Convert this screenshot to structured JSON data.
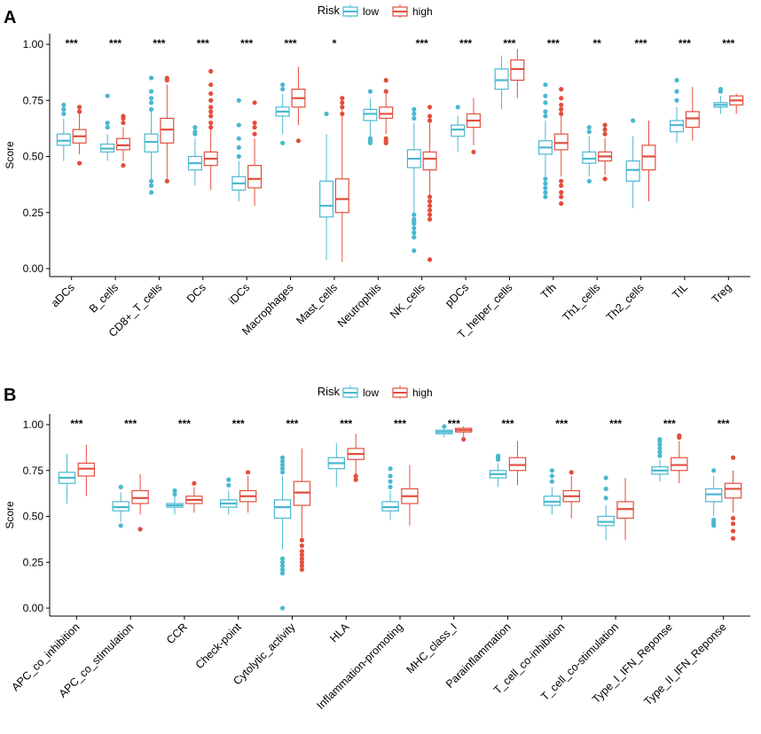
{
  "colors": {
    "low": "#4ab8d0",
    "high": "#e24e3c"
  },
  "chart_data": [
    {
      "panel": "A",
      "type": "boxplot",
      "ylabel": "Score",
      "ylim": [
        0,
        1
      ],
      "yticks": [
        "0.00",
        "0.25",
        "0.50",
        "0.75",
        "1.00"
      ],
      "ytick_values": [
        0,
        0.25,
        0.5,
        0.75,
        1.0
      ],
      "legend": {
        "title": "Risk",
        "entries": [
          "low",
          "high"
        ]
      },
      "categories": [
        "aDCs",
        "B_cells",
        "CD8+_T_cells",
        "DCs",
        "iDCs",
        "Macrophages",
        "Mast_cells",
        "Neutrophils",
        "NK_cells",
        "pDCs",
        "T_helper_cells",
        "Tfh",
        "Th1_cells",
        "Th2_cells",
        "TIL",
        "Treg"
      ],
      "significance": [
        "***",
        "***",
        "***",
        "***",
        "***",
        "***",
        "*",
        "",
        "***",
        "***",
        "***",
        "***",
        "**",
        "***",
        "***",
        "***"
      ],
      "series": [
        {
          "name": "low",
          "boxes": [
            [
              0.48,
              0.55,
              0.57,
              0.6,
              0.67
            ],
            [
              0.48,
              0.52,
              0.535,
              0.555,
              0.6
            ],
            [
              0.36,
              0.52,
              0.565,
              0.6,
              0.7
            ],
            [
              0.37,
              0.44,
              0.47,
              0.5,
              0.58
            ],
            [
              0.3,
              0.35,
              0.38,
              0.41,
              0.48
            ],
            [
              0.6,
              0.68,
              0.7,
              0.72,
              0.78
            ],
            [
              0.04,
              0.23,
              0.28,
              0.39,
              0.6
            ],
            [
              0.59,
              0.66,
              0.69,
              0.71,
              0.76
            ],
            [
              0.25,
              0.45,
              0.49,
              0.53,
              0.65
            ],
            [
              0.52,
              0.59,
              0.62,
              0.64,
              0.68
            ],
            [
              0.71,
              0.8,
              0.84,
              0.89,
              0.95
            ],
            [
              0.41,
              0.51,
              0.54,
              0.57,
              0.66
            ],
            [
              0.41,
              0.47,
              0.49,
              0.52,
              0.59
            ],
            [
              0.27,
              0.39,
              0.44,
              0.48,
              0.59
            ],
            [
              0.56,
              0.61,
              0.64,
              0.66,
              0.72
            ],
            [
              0.69,
              0.72,
              0.73,
              0.74,
              0.77
            ]
          ],
          "outliers": [
            [
              0.69,
              0.71,
              0.73
            ],
            [
              0.63,
              0.65,
              0.77
            ],
            [
              0.34,
              0.37,
              0.39,
              0.71,
              0.74,
              0.76,
              0.79,
              0.85
            ],
            [
              0.6,
              0.61,
              0.63
            ],
            [
              0.5,
              0.54,
              0.58,
              0.64,
              0.75
            ],
            [
              0.56,
              0.8,
              0.82
            ],
            [
              0.69
            ],
            [
              0.56,
              0.57,
              0.58,
              0.79
            ],
            [
              0.08,
              0.14,
              0.16,
              0.18,
              0.2,
              0.21,
              0.22,
              0.24,
              0.67,
              0.69,
              0.71
            ],
            [
              0.72
            ],
            [],
            [
              0.32,
              0.34,
              0.36,
              0.38,
              0.4,
              0.68,
              0.7,
              0.74,
              0.77,
              0.82
            ],
            [
              0.39,
              0.61,
              0.63
            ],
            [
              0.66
            ],
            [
              0.75,
              0.79,
              0.84
            ],
            [
              0.79,
              0.8
            ]
          ]
        },
        {
          "name": "high",
          "boxes": [
            [
              0.51,
              0.56,
              0.59,
              0.62,
              0.7
            ],
            [
              0.48,
              0.53,
              0.55,
              0.58,
              0.63
            ],
            [
              0.4,
              0.56,
              0.62,
              0.67,
              0.82
            ],
            [
              0.35,
              0.46,
              0.49,
              0.52,
              0.62
            ],
            [
              0.28,
              0.36,
              0.4,
              0.46,
              0.58
            ],
            [
              0.64,
              0.72,
              0.76,
              0.8,
              0.9
            ],
            [
              0.03,
              0.25,
              0.31,
              0.4,
              0.76
            ],
            [
              0.6,
              0.67,
              0.69,
              0.72,
              0.78
            ],
            [
              0.33,
              0.44,
              0.49,
              0.52,
              0.65
            ],
            [
              0.55,
              0.63,
              0.66,
              0.69,
              0.76
            ],
            [
              0.76,
              0.84,
              0.89,
              0.93,
              0.98
            ],
            [
              0.41,
              0.53,
              0.56,
              0.6,
              0.68
            ],
            [
              0.42,
              0.48,
              0.5,
              0.52,
              0.58
            ],
            [
              0.3,
              0.44,
              0.5,
              0.55,
              0.66
            ],
            [
              0.57,
              0.63,
              0.67,
              0.7,
              0.81
            ],
            [
              0.69,
              0.73,
              0.75,
              0.77,
              0.78
            ]
          ],
          "outliers": [
            [
              0.47,
              0.7,
              0.72
            ],
            [
              0.46,
              0.65,
              0.67,
              0.68
            ],
            [
              0.39,
              0.84,
              0.85
            ],
            [
              0.63,
              0.65,
              0.68,
              0.7,
              0.72,
              0.75,
              0.78,
              0.82,
              0.88
            ],
            [
              0.6,
              0.63,
              0.65,
              0.74
            ],
            [
              0.57
            ],
            [
              0.69,
              0.72,
              0.74,
              0.76
            ],
            [
              0.56,
              0.57,
              0.58,
              0.79,
              0.84
            ],
            [
              0.04,
              0.22,
              0.24,
              0.26,
              0.28,
              0.3,
              0.32,
              0.66,
              0.68,
              0.72
            ],
            [
              0.52
            ],
            [],
            [
              0.29,
              0.32,
              0.34,
              0.37,
              0.39,
              0.69,
              0.71,
              0.73,
              0.76,
              0.8
            ],
            [
              0.4,
              0.6,
              0.62,
              0.64
            ],
            [],
            [],
            []
          ]
        }
      ]
    },
    {
      "panel": "B",
      "type": "boxplot",
      "ylabel": "Score",
      "ylim": [
        0,
        1
      ],
      "yticks": [
        "0.00",
        "0.25",
        "0.50",
        "0.75",
        "1.00"
      ],
      "ytick_values": [
        0,
        0.25,
        0.5,
        0.75,
        1.0
      ],
      "legend": {
        "title": "Risk",
        "entries": [
          "low",
          "high"
        ]
      },
      "categories": [
        "APC_co_inhibition",
        "APC_co_stimulation",
        "CCR",
        "Check-point",
        "Cytolytic_activity",
        "HLA",
        "Inflammation-promoting",
        "MHC_class_I",
        "Parainflammation",
        "T_cell_co-inhibition",
        "T_cell_co-stimulation",
        "Type_I_IFN_Reponse",
        "Type_II_IFN_Reponse"
      ],
      "significance": [
        "***",
        "***",
        "***",
        "***",
        "***",
        "***",
        "***",
        "***",
        "***",
        "***",
        "***",
        "***",
        "***"
      ],
      "series": [
        {
          "name": "low",
          "boxes": [
            [
              0.57,
              0.68,
              0.71,
              0.74,
              0.84
            ],
            [
              0.47,
              0.53,
              0.55,
              0.58,
              0.63
            ],
            [
              0.51,
              0.55,
              0.56,
              0.57,
              0.61
            ],
            [
              0.51,
              0.55,
              0.57,
              0.59,
              0.64
            ],
            [
              0.32,
              0.49,
              0.55,
              0.59,
              0.72
            ],
            [
              0.66,
              0.76,
              0.79,
              0.82,
              0.9
            ],
            [
              0.48,
              0.53,
              0.55,
              0.58,
              0.64
            ],
            [
              0.93,
              0.95,
              0.96,
              0.97,
              0.98
            ],
            [
              0.66,
              0.71,
              0.73,
              0.75,
              0.79
            ],
            [
              0.51,
              0.56,
              0.58,
              0.61,
              0.66
            ],
            [
              0.37,
              0.45,
              0.47,
              0.5,
              0.56
            ],
            [
              0.69,
              0.73,
              0.75,
              0.77,
              0.81
            ],
            [
              0.5,
              0.58,
              0.62,
              0.65,
              0.72
            ]
          ],
          "outliers": [
            [],
            [
              0.45,
              0.66
            ],
            [
              0.62,
              0.64
            ],
            [
              0.67,
              0.7
            ],
            [
              0.0,
              0.19,
              0.21,
              0.23,
              0.25,
              0.27,
              0.74,
              0.76,
              0.78,
              0.8,
              0.82
            ],
            [],
            [
              0.66,
              0.69,
              0.72,
              0.76
            ],
            [
              0.99
            ],
            [
              0.81,
              0.82,
              0.83
            ],
            [
              0.69,
              0.72,
              0.75
            ],
            [
              0.6,
              0.65,
              0.71
            ],
            [
              0.83,
              0.85,
              0.87,
              0.89,
              0.91,
              0.92
            ],
            [
              0.45,
              0.46,
              0.47,
              0.48,
              0.75
            ]
          ]
        },
        {
          "name": "high",
          "boxes": [
            [
              0.61,
              0.72,
              0.76,
              0.79,
              0.89
            ],
            [
              0.51,
              0.57,
              0.6,
              0.64,
              0.73
            ],
            [
              0.52,
              0.57,
              0.59,
              0.61,
              0.66
            ],
            [
              0.52,
              0.58,
              0.61,
              0.64,
              0.72
            ],
            [
              0.37,
              0.56,
              0.63,
              0.69,
              0.87
            ],
            [
              0.71,
              0.81,
              0.84,
              0.87,
              0.95
            ],
            [
              0.45,
              0.57,
              0.61,
              0.65,
              0.78
            ],
            [
              0.93,
              0.96,
              0.97,
              0.98,
              0.99
            ],
            [
              0.67,
              0.75,
              0.78,
              0.82,
              0.91
            ],
            [
              0.49,
              0.58,
              0.61,
              0.64,
              0.72
            ],
            [
              0.37,
              0.49,
              0.54,
              0.58,
              0.71
            ],
            [
              0.68,
              0.75,
              0.78,
              0.82,
              0.91
            ],
            [
              0.52,
              0.6,
              0.65,
              0.68,
              0.75
            ]
          ],
          "outliers": [
            [],
            [
              0.43
            ],
            [
              0.68
            ],
            [
              0.74
            ],
            [
              0.21,
              0.23,
              0.25,
              0.27,
              0.29,
              0.31,
              0.34,
              0.37
            ],
            [
              0.7,
              0.72
            ],
            [],
            [
              0.92
            ],
            [],
            [
              0.74
            ],
            [],
            [
              0.93,
              0.94
            ],
            [
              0.38,
              0.42,
              0.46,
              0.49,
              0.82
            ]
          ]
        }
      ]
    }
  ]
}
